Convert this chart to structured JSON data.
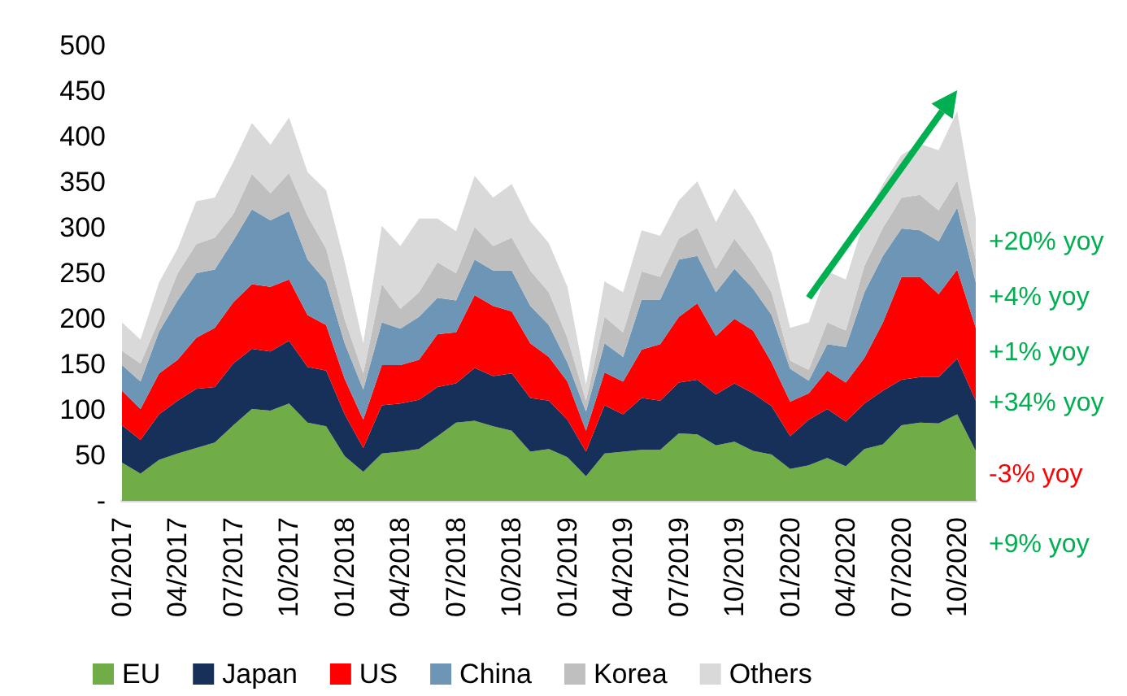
{
  "chart_data": {
    "type": "area",
    "stacked": true,
    "categories": [
      "01/2017",
      null,
      null,
      "04/2017",
      null,
      null,
      "07/2017",
      null,
      null,
      "10/2017",
      null,
      null,
      "01/2018",
      null,
      null,
      "04/2018",
      null,
      null,
      "07/2018",
      null,
      null,
      "10/2018",
      null,
      null,
      "01/2019",
      null,
      null,
      "04/2019",
      null,
      null,
      "07/2019",
      null,
      null,
      "10/2019",
      null,
      null,
      "01/2020",
      null,
      null,
      "04/2020",
      null,
      null,
      "07/2020",
      null,
      null,
      "10/2020",
      null
    ],
    "series": [
      {
        "name": "EU",
        "color": "#70ad47",
        "values": [
          42,
          30,
          45,
          52,
          58,
          64,
          83,
          101,
          99,
          107,
          86,
          82,
          49,
          32,
          52,
          54,
          57,
          71,
          86,
          88,
          82,
          77,
          54,
          57,
          48,
          27,
          52,
          54,
          56,
          56,
          74,
          73,
          61,
          65,
          55,
          51,
          35,
          39,
          47,
          38,
          57,
          62,
          83,
          86,
          85,
          95,
          55
        ]
      },
      {
        "name": "Japan",
        "color": "#17305a",
        "values": [
          41,
          37,
          50,
          58,
          65,
          61,
          68,
          66,
          65,
          69,
          61,
          61,
          46,
          26,
          53,
          53,
          54,
          54,
          43,
          58,
          55,
          63,
          59,
          53,
          41,
          27,
          53,
          41,
          57,
          54,
          56,
          60,
          56,
          64,
          63,
          53,
          36,
          50,
          54,
          49,
          50,
          59,
          50,
          50,
          51,
          61,
          55
        ]
      },
      {
        "name": "US",
        "color": "#ff0000",
        "values": [
          38,
          34,
          45,
          45,
          56,
          65,
          67,
          71,
          71,
          67,
          57,
          50,
          39,
          31,
          44,
          42,
          44,
          58,
          56,
          80,
          77,
          68,
          60,
          48,
          42,
          23,
          36,
          36,
          53,
          62,
          72,
          84,
          64,
          71,
          69,
          48,
          38,
          29,
          42,
          43,
          50,
          75,
          113,
          110,
          91,
          98,
          80
        ]
      },
      {
        "name": "China",
        "color": "#6c95b6",
        "values": [
          28,
          30,
          46,
          65,
          71,
          64,
          68,
          82,
          73,
          75,
          61,
          48,
          39,
          33,
          47,
          40,
          47,
          40,
          35,
          39,
          39,
          45,
          41,
          35,
          21,
          21,
          32,
          27,
          55,
          49,
          63,
          52,
          48,
          55,
          46,
          52,
          36,
          14,
          29,
          39,
          72,
          73,
          53,
          51,
          58,
          68,
          50
        ]
      },
      {
        "name": "Korea",
        "color": "#bfbfbf",
        "values": [
          16,
          20,
          13,
          30,
          32,
          35,
          29,
          39,
          30,
          42,
          48,
          36,
          26,
          18,
          42,
          22,
          27,
          39,
          30,
          36,
          27,
          36,
          39,
          36,
          27,
          12,
          29,
          27,
          31,
          25,
          23,
          31,
          26,
          33,
          28,
          25,
          9,
          12,
          24,
          18,
          29,
          31,
          34,
          39,
          34,
          30,
          25
        ]
      },
      {
        "name": "Others",
        "color": "#d9d9d9",
        "values": [
          31,
          26,
          41,
          27,
          47,
          44,
          57,
          56,
          53,
          61,
          48,
          64,
          63,
          33,
          64,
          69,
          81,
          48,
          46,
          56,
          53,
          59,
          54,
          54,
          56,
          18,
          39,
          44,
          45,
          45,
          42,
          51,
          51,
          55,
          51,
          44,
          36,
          52,
          56,
          56,
          51,
          48,
          47,
          56,
          66,
          76,
          45
        ]
      }
    ],
    "ylim": [
      0,
      500
    ],
    "yticks": [
      {
        "value": 0,
        "label": "-"
      },
      50,
      100,
      150,
      200,
      250,
      300,
      350,
      400,
      450,
      500
    ],
    "grid": false,
    "legend": "bottom",
    "annotations": [
      "+20% yoy",
      "+4% yoy",
      "+1% yoy",
      "+34% yoy",
      "-3% yoy",
      "+9% yoy"
    ]
  }
}
